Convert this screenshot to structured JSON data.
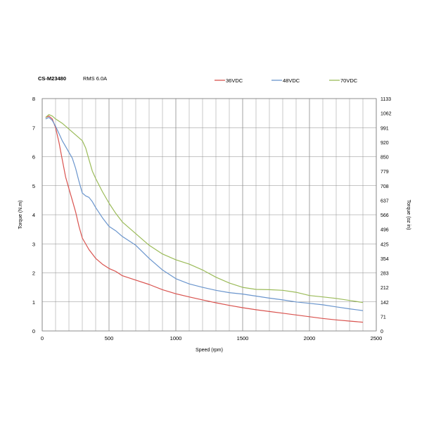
{
  "header": {
    "model": "CS-M23480",
    "rms": "RMS 6.0A"
  },
  "chart_data": {
    "type": "line",
    "xlabel": "Speed (rpm)",
    "ylabel": "Torque (N.m)",
    "y2label": "Torque (oz in)",
    "xlim": [
      0,
      2500
    ],
    "ylim": [
      0,
      8
    ],
    "y2lim": [
      0,
      1133
    ],
    "x_ticks": [
      "0",
      "500",
      "1000",
      "1500",
      "2000",
      "2500"
    ],
    "y_ticks": [
      "0",
      "1",
      "2",
      "3",
      "4",
      "5",
      "6",
      "7",
      "8"
    ],
    "y2_ticks": [
      "0",
      "71",
      "142",
      "212",
      "283",
      "354",
      "425",
      "496",
      "566",
      "637",
      "708",
      "779",
      "850",
      "920",
      "991",
      "1062",
      "1133"
    ],
    "grid": true,
    "legend_position": "top",
    "series": [
      {
        "name": "36VDC",
        "color": "#d9534f",
        "points": [
          [
            25,
            7.35
          ],
          [
            50,
            7.4
          ],
          [
            75,
            7.3
          ],
          [
            100,
            7.0
          ],
          [
            125,
            6.5
          ],
          [
            150,
            5.9
          ],
          [
            175,
            5.3
          ],
          [
            200,
            4.9
          ],
          [
            225,
            4.5
          ],
          [
            250,
            4.1
          ],
          [
            275,
            3.6
          ],
          [
            300,
            3.2
          ],
          [
            350,
            2.8
          ],
          [
            400,
            2.5
          ],
          [
            450,
            2.3
          ],
          [
            500,
            2.15
          ],
          [
            550,
            2.05
          ],
          [
            600,
            1.9
          ],
          [
            700,
            1.75
          ],
          [
            800,
            1.6
          ],
          [
            900,
            1.42
          ],
          [
            1000,
            1.28
          ],
          [
            1100,
            1.17
          ],
          [
            1200,
            1.07
          ],
          [
            1300,
            0.97
          ],
          [
            1400,
            0.88
          ],
          [
            1500,
            0.8
          ],
          [
            1600,
            0.73
          ],
          [
            1700,
            0.67
          ],
          [
            1800,
            0.61
          ],
          [
            1900,
            0.55
          ],
          [
            2000,
            0.49
          ],
          [
            2100,
            0.43
          ],
          [
            2200,
            0.38
          ],
          [
            2300,
            0.34
          ],
          [
            2400,
            0.3
          ]
        ]
      },
      {
        "name": "48VDC",
        "color": "#6a95cd",
        "points": [
          [
            25,
            7.3
          ],
          [
            50,
            7.35
          ],
          [
            75,
            7.25
          ],
          [
            100,
            7.05
          ],
          [
            125,
            6.8
          ],
          [
            150,
            6.55
          ],
          [
            175,
            6.35
          ],
          [
            200,
            6.15
          ],
          [
            225,
            5.95
          ],
          [
            250,
            5.6
          ],
          [
            275,
            5.15
          ],
          [
            300,
            4.75
          ],
          [
            325,
            4.65
          ],
          [
            350,
            4.6
          ],
          [
            375,
            4.45
          ],
          [
            400,
            4.25
          ],
          [
            450,
            3.9
          ],
          [
            500,
            3.6
          ],
          [
            550,
            3.45
          ],
          [
            600,
            3.25
          ],
          [
            700,
            2.95
          ],
          [
            800,
            2.5
          ],
          [
            900,
            2.1
          ],
          [
            1000,
            1.8
          ],
          [
            1100,
            1.62
          ],
          [
            1200,
            1.5
          ],
          [
            1300,
            1.4
          ],
          [
            1400,
            1.32
          ],
          [
            1500,
            1.27
          ],
          [
            1600,
            1.2
          ],
          [
            1700,
            1.13
          ],
          [
            1800,
            1.07
          ],
          [
            1900,
            1.0
          ],
          [
            2000,
            0.95
          ],
          [
            2100,
            0.9
          ],
          [
            2200,
            0.83
          ],
          [
            2300,
            0.76
          ],
          [
            2400,
            0.7
          ]
        ]
      },
      {
        "name": "70VDC",
        "color": "#9bbb59",
        "points": [
          [
            25,
            7.35
          ],
          [
            50,
            7.45
          ],
          [
            75,
            7.4
          ],
          [
            100,
            7.3
          ],
          [
            150,
            7.15
          ],
          [
            200,
            6.95
          ],
          [
            250,
            6.75
          ],
          [
            300,
            6.55
          ],
          [
            325,
            6.3
          ],
          [
            350,
            5.9
          ],
          [
            375,
            5.5
          ],
          [
            400,
            5.25
          ],
          [
            450,
            4.8
          ],
          [
            500,
            4.4
          ],
          [
            550,
            4.05
          ],
          [
            600,
            3.75
          ],
          [
            700,
            3.35
          ],
          [
            800,
            2.95
          ],
          [
            900,
            2.65
          ],
          [
            1000,
            2.45
          ],
          [
            1100,
            2.3
          ],
          [
            1200,
            2.1
          ],
          [
            1300,
            1.85
          ],
          [
            1400,
            1.65
          ],
          [
            1500,
            1.5
          ],
          [
            1600,
            1.43
          ],
          [
            1700,
            1.42
          ],
          [
            1800,
            1.4
          ],
          [
            1900,
            1.33
          ],
          [
            2000,
            1.22
          ],
          [
            2100,
            1.17
          ],
          [
            2200,
            1.12
          ],
          [
            2300,
            1.05
          ],
          [
            2400,
            0.98
          ]
        ]
      }
    ]
  }
}
